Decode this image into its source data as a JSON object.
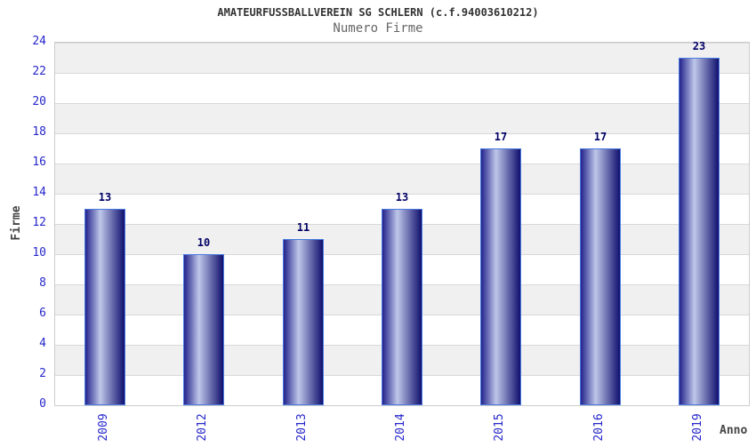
{
  "chart_data": {
    "type": "bar",
    "title": "AMATEURFUSSBALLVEREIN SG SCHLERN (c.f.94003610212)",
    "subtitle": "Numero Firme",
    "xlabel": "Anno",
    "ylabel": "Firme",
    "categories": [
      "2009",
      "2012",
      "2013",
      "2014",
      "2015",
      "2016",
      "2019"
    ],
    "values": [
      13,
      10,
      11,
      13,
      17,
      17,
      23
    ],
    "ylim": [
      0,
      24
    ],
    "ytick_step": 2,
    "grid": "horizontal-bands",
    "legend": "none",
    "value_labels_shown": true,
    "colors": {
      "title": "#333333",
      "subtitle": "#666666",
      "axis_title": "#444444",
      "tick_label": "#2626cc",
      "value_label": "#000066",
      "bar_dark": "#23238c",
      "bar_light": "#bec7e9",
      "bar_darker": "#10106e",
      "bar_border": "#4a7ae0",
      "band_gray": "#f0f0f0",
      "band_white": "#ffffff",
      "grid_line": "#d9d9d9",
      "plot_border": "#cccccc",
      "background": "#ffffff"
    }
  }
}
